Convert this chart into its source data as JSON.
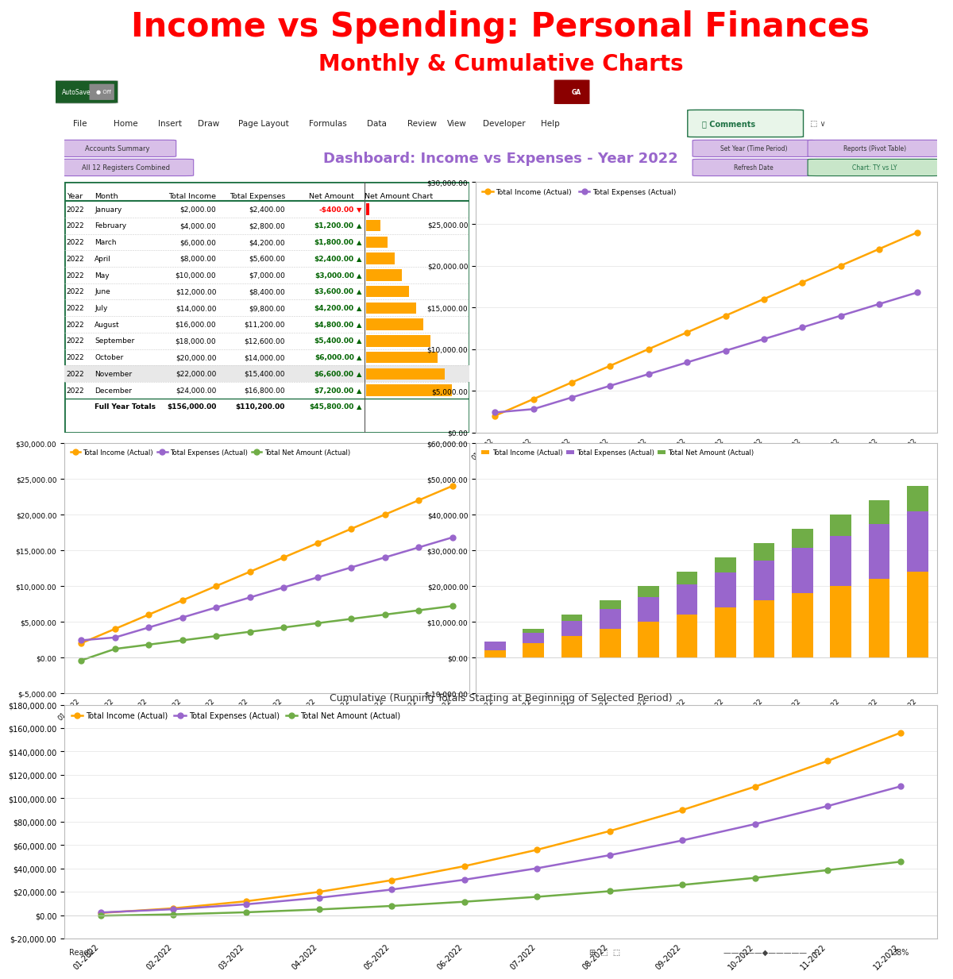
{
  "title1": "Income vs Spending: Personal Finances",
  "title2": "Monthly & Cumulative Charts",
  "title_color": "#FF0000",
  "months": [
    "January",
    "February",
    "March",
    "April",
    "May",
    "June",
    "July",
    "August",
    "September",
    "October",
    "November",
    "December"
  ],
  "month_labels": [
    "01-2022",
    "02-2022",
    "03-2022",
    "04-2022",
    "05-2022",
    "06-2022",
    "07-2022",
    "08-2022",
    "09-2022",
    "10-2022",
    "11-2022",
    "12-2022"
  ],
  "year": 2022,
  "total_income": [
    2000,
    4000,
    6000,
    8000,
    10000,
    12000,
    14000,
    16000,
    18000,
    20000,
    22000,
    24000
  ],
  "total_expenses": [
    2400,
    2800,
    4200,
    5600,
    7000,
    8400,
    9800,
    11200,
    12600,
    14000,
    15400,
    16800
  ],
  "net_amount": [
    -400,
    1200,
    1800,
    2400,
    3000,
    3600,
    4200,
    4800,
    5400,
    6000,
    6600,
    7200
  ],
  "cum_income": [
    2000,
    6000,
    12000,
    20000,
    30000,
    42000,
    56000,
    72000,
    90000,
    110000,
    132000,
    156000
  ],
  "cum_expenses": [
    2400,
    5200,
    9400,
    15000,
    22000,
    30400,
    40200,
    51400,
    64000,
    78000,
    93400,
    110200
  ],
  "cum_net": [
    -400,
    800,
    2600,
    5000,
    8000,
    11600,
    15800,
    20600,
    26000,
    32000,
    38600,
    45800
  ],
  "full_year_income": 156000,
  "full_year_expenses": 110200,
  "full_year_net": 45800,
  "dashboard_title": "Dashboard: Income vs Expenses - Year 2022",
  "orange_color": "#FFA500",
  "purple_color": "#9966CC",
  "green_color": "#70AD47",
  "red_color": "#FF0000",
  "dark_green": "#217346",
  "net_green": "#006400",
  "chart_bg": "#FFFFFF",
  "grid_color": "#E8E8E8",
  "excel_bg": "#D6D6D6",
  "toolbar_dark_green": "#1F6B2E",
  "ribbon_bg": "#F0F0F0",
  "dash_header_bg": "#E8D5F5",
  "btn_purple_bg": "#D8BFE8",
  "btn_purple_border": "#9966CC",
  "btn_green_bg": "#C8E6C9",
  "btn_green_border": "#217346",
  "header_purple": "#9966CC",
  "table_bg": "#FFFFFF",
  "nov_row_bg": "#E8E8E8",
  "status_bg": "#C0C0C0"
}
